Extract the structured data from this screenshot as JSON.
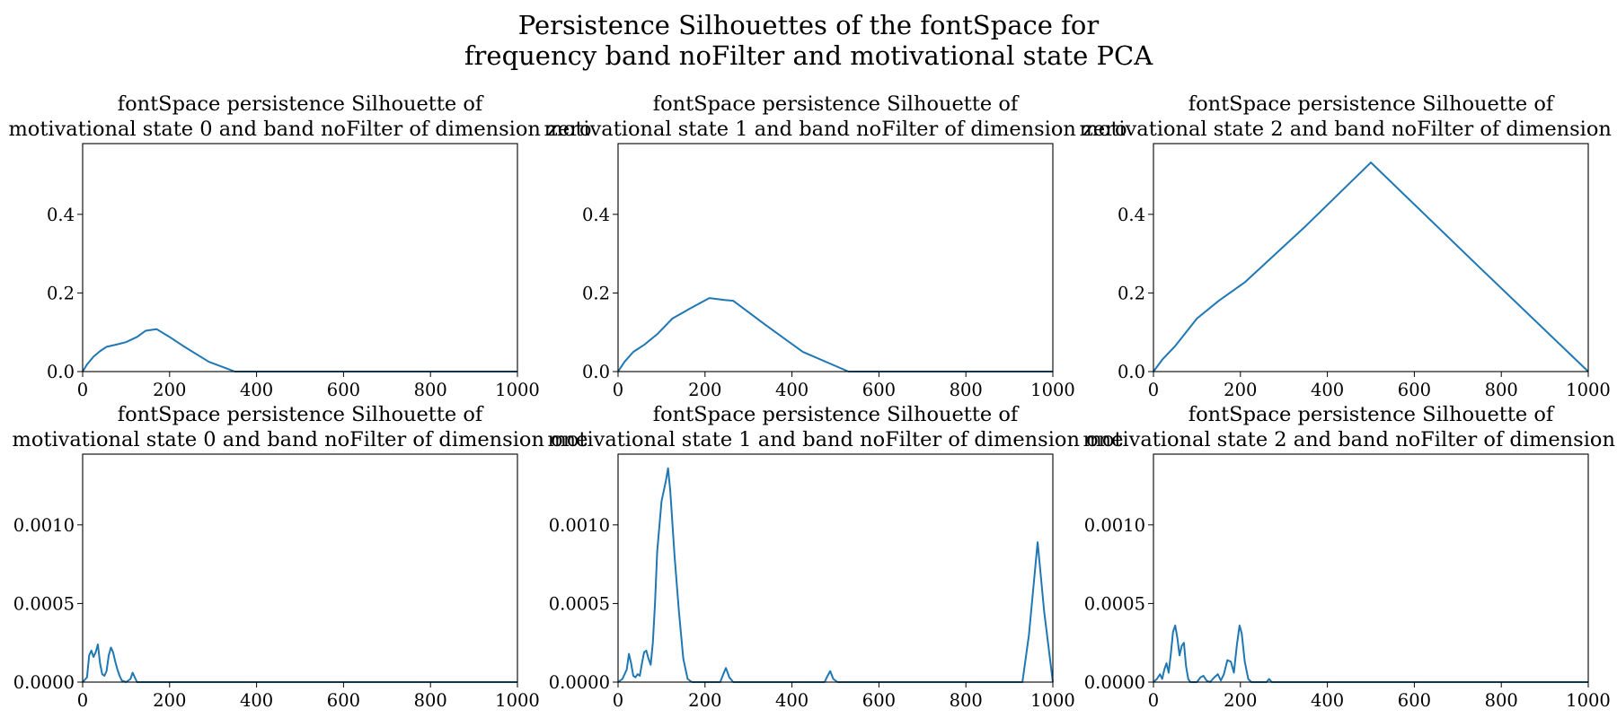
{
  "figure": {
    "suptitle_line1": "Persistence Silhouettes of the fontSpace for",
    "suptitle_line2": "frequency band noFilter and motivational state PCA"
  },
  "colors": {
    "line": "#1f77b4",
    "axes": "#000000",
    "background": "#ffffff"
  },
  "chart_data": [
    {
      "type": "line",
      "title_line1": "fontSpace persistence Silhouette of",
      "title_line2": "motivational state 0 and band noFilter of dimension zero",
      "xlim": [
        0,
        1000
      ],
      "ylim": [
        0,
        0.58
      ],
      "xticks": [
        "0",
        "200",
        "400",
        "600",
        "800",
        "1000"
      ],
      "yticks": [
        "0.0",
        "0.2",
        "0.4"
      ],
      "ytick_values": [
        0,
        0.2,
        0.4
      ],
      "grid": false,
      "x": [
        0,
        10,
        25,
        40,
        55,
        75,
        100,
        125,
        145,
        170,
        200,
        230,
        290,
        350,
        400,
        600,
        800,
        1000
      ],
      "y": [
        0,
        0.018,
        0.038,
        0.052,
        0.063,
        0.068,
        0.075,
        0.088,
        0.104,
        0.108,
        0.088,
        0.066,
        0.025,
        0,
        0,
        0,
        0,
        0
      ]
    },
    {
      "type": "line",
      "title_line1": "fontSpace persistence Silhouette of",
      "title_line2": "motivational state 1 and band noFilter of dimension zero",
      "xlim": [
        0,
        1000
      ],
      "ylim": [
        0,
        0.58
      ],
      "xticks": [
        "0",
        "200",
        "400",
        "600",
        "800",
        "1000"
      ],
      "yticks": [
        "0.0",
        "0.2",
        "0.4"
      ],
      "ytick_values": [
        0,
        0.2,
        0.4
      ],
      "grid": false,
      "x": [
        0,
        15,
        35,
        60,
        90,
        125,
        165,
        210,
        245,
        265,
        340,
        425,
        530,
        600,
        800,
        1000
      ],
      "y": [
        0,
        0.025,
        0.05,
        0.068,
        0.095,
        0.135,
        0.16,
        0.187,
        0.182,
        0.18,
        0.118,
        0.05,
        0,
        0,
        0,
        0
      ]
    },
    {
      "type": "line",
      "title_line1": "fontSpace persistence Silhouette of",
      "title_line2": "motivational state 2 and band noFilter of dimension zero",
      "xlim": [
        0,
        1000
      ],
      "ylim": [
        0,
        0.58
      ],
      "xticks": [
        "0",
        "200",
        "400",
        "600",
        "800",
        "1000"
      ],
      "yticks": [
        "0.0",
        "0.2",
        "0.4"
      ],
      "ytick_values": [
        0,
        0.2,
        0.4
      ],
      "grid": false,
      "x": [
        0,
        20,
        50,
        100,
        150,
        210,
        350,
        500,
        750,
        1000
      ],
      "y": [
        0,
        0.03,
        0.065,
        0.135,
        0.18,
        0.227,
        0.37,
        0.532,
        0.265,
        0
      ]
    },
    {
      "type": "line",
      "title_line1": "fontSpace persistence Silhouette of",
      "title_line2": "motivational state 0 and band noFilter of dimension one",
      "xlim": [
        0,
        1000
      ],
      "ylim": [
        0,
        0.00145
      ],
      "xticks": [
        "0",
        "200",
        "400",
        "600",
        "800",
        "1000"
      ],
      "yticks": [
        "0.0000",
        "0.0005",
        "0.0010"
      ],
      "ytick_values": [
        0,
        0.0005,
        0.001
      ],
      "grid": false,
      "x": [
        0,
        10,
        15,
        20,
        25,
        30,
        35,
        40,
        45,
        50,
        55,
        60,
        65,
        70,
        75,
        80,
        85,
        90,
        100,
        110,
        115,
        120,
        125,
        135,
        400,
        1000
      ],
      "y": [
        0,
        3e-05,
        0.00017,
        0.0002,
        0.00016,
        0.00019,
        0.00024,
        0.00012,
        5e-05,
        4e-05,
        7e-05,
        0.00017,
        0.00022,
        0.00019,
        0.00013,
        8e-05,
        4e-05,
        1e-05,
        0,
        2e-05,
        6e-05,
        3e-05,
        0,
        0,
        0,
        0
      ]
    },
    {
      "type": "line",
      "title_line1": "fontSpace persistence Silhouette of",
      "title_line2": "motivational state 1 and band noFilter of dimension one",
      "xlim": [
        0,
        1000
      ],
      "ylim": [
        0,
        0.00145
      ],
      "xticks": [
        "0",
        "200",
        "400",
        "600",
        "800",
        "1000"
      ],
      "yticks": [
        "0.0000",
        "0.0005",
        "0.0010"
      ],
      "ytick_values": [
        0,
        0.0005,
        0.001
      ],
      "grid": false,
      "x": [
        0,
        10,
        20,
        25,
        30,
        35,
        40,
        45,
        50,
        55,
        60,
        65,
        70,
        75,
        80,
        85,
        90,
        100,
        110,
        115,
        120,
        130,
        140,
        150,
        160,
        170,
        235,
        242,
        248,
        256,
        265,
        475,
        482,
        488,
        495,
        505,
        930,
        945,
        965,
        980,
        1000
      ],
      "y": [
        0,
        2e-05,
        8e-05,
        0.00018,
        0.00012,
        4e-05,
        3e-05,
        5e-05,
        4e-05,
        0.00012,
        0.00019,
        0.0002,
        0.00015,
        0.00011,
        0.00025,
        0.0005,
        0.00083,
        0.00115,
        0.00128,
        0.00136,
        0.00122,
        0.0008,
        0.00045,
        0.00015,
        2e-05,
        0,
        0,
        5e-05,
        9e-05,
        3e-05,
        0,
        0,
        4e-05,
        7e-05,
        2e-05,
        0,
        0,
        0.0003,
        0.00089,
        0.00045,
        0
      ]
    },
    {
      "type": "line",
      "title_line1": "fontSpace persistence Silhouette of",
      "title_line2": "motivational state 2 and band noFilter of dimension one",
      "xlim": [
        0,
        1000
      ],
      "ylim": [
        0,
        0.00145
      ],
      "xticks": [
        "0",
        "200",
        "400",
        "600",
        "800",
        "1000"
      ],
      "yticks": [
        "0.0000",
        "0.0005",
        "0.0010"
      ],
      "ytick_values": [
        0,
        0.0005,
        0.001
      ],
      "grid": false,
      "x": [
        0,
        8,
        15,
        20,
        25,
        30,
        35,
        40,
        45,
        50,
        55,
        60,
        65,
        70,
        75,
        80,
        85,
        90,
        95,
        100,
        108,
        115,
        122,
        130,
        140,
        148,
        155,
        162,
        170,
        178,
        185,
        192,
        198,
        203,
        210,
        218,
        225,
        260,
        266,
        272,
        1000
      ],
      "y": [
        0,
        2e-05,
        5e-05,
        2e-05,
        8e-05,
        0.00012,
        6e-05,
        0.00018,
        0.00032,
        0.00036,
        0.00028,
        0.00017,
        0.00023,
        0.00025,
        0.0001,
        2e-05,
        0,
        0,
        0,
        0,
        3e-05,
        4e-05,
        1e-05,
        0,
        3e-05,
        5e-05,
        1e-05,
        5e-05,
        0.00014,
        0.00013,
        6e-05,
        0.00024,
        0.00036,
        0.00031,
        0.00013,
        2e-05,
        0,
        0,
        2e-05,
        0,
        0
      ]
    }
  ]
}
